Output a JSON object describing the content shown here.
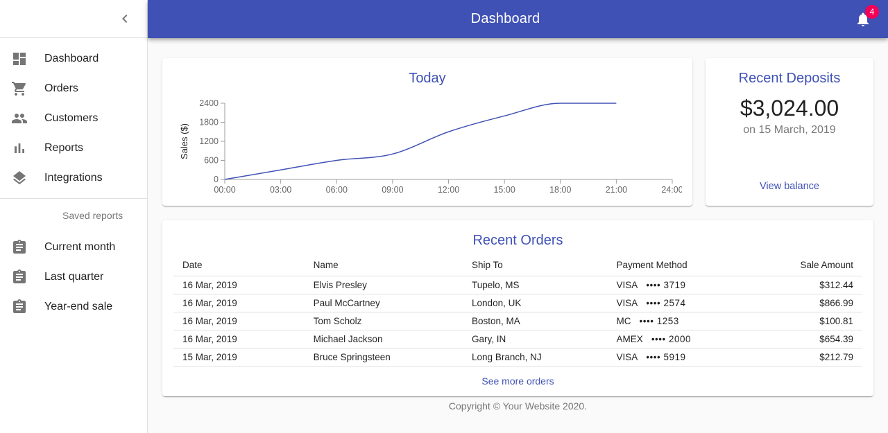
{
  "appbar": {
    "title": "Dashboard",
    "notifications_count": "4"
  },
  "sidebar": {
    "items": [
      {
        "label": "Dashboard",
        "icon": "dashboard-icon"
      },
      {
        "label": "Orders",
        "icon": "shopping-cart-icon"
      },
      {
        "label": "Customers",
        "icon": "people-icon"
      },
      {
        "label": "Reports",
        "icon": "bar-chart-icon"
      },
      {
        "label": "Integrations",
        "icon": "layers-icon"
      }
    ],
    "subheader": "Saved reports",
    "saved_reports": [
      {
        "label": "Current month",
        "icon": "assignment-icon"
      },
      {
        "label": "Last quarter",
        "icon": "assignment-icon"
      },
      {
        "label": "Year-end sale",
        "icon": "assignment-icon"
      }
    ]
  },
  "chart_data": {
    "type": "line",
    "title": "Today",
    "x": [
      "00:00",
      "03:00",
      "06:00",
      "09:00",
      "12:00",
      "15:00",
      "18:00",
      "21:00",
      "24:00"
    ],
    "values": [
      0,
      300,
      600,
      800,
      1500,
      2000,
      2400,
      2400,
      null
    ],
    "xlabel": "",
    "ylabel": "Sales ($)",
    "ylim": [
      0,
      2400
    ],
    "yticks": [
      0,
      600,
      1200,
      1800,
      2400
    ],
    "line_color": "#3f51b5",
    "grid": false,
    "legend": "none"
  },
  "deposits": {
    "title": "Recent Deposits",
    "amount": "$3,024.00",
    "date": "on 15 March, 2019",
    "link": "View balance"
  },
  "orders": {
    "title": "Recent Orders",
    "columns": [
      "Date",
      "Name",
      "Ship To",
      "Payment Method",
      "Sale Amount"
    ],
    "rows": [
      {
        "date": "16 Mar, 2019",
        "name": "Elvis Presley",
        "ship_to": "Tupelo, MS",
        "pay_brand": "VISA",
        "pay_last4": "•••• 3719",
        "amount": "$312.44"
      },
      {
        "date": "16 Mar, 2019",
        "name": "Paul McCartney",
        "ship_to": "London, UK",
        "pay_brand": "VISA",
        "pay_last4": "•••• 2574",
        "amount": "$866.99"
      },
      {
        "date": "16 Mar, 2019",
        "name": "Tom Scholz",
        "ship_to": "Boston, MA",
        "pay_brand": "MC",
        "pay_last4": "•••• 1253",
        "amount": "$100.81"
      },
      {
        "date": "16 Mar, 2019",
        "name": "Michael Jackson",
        "ship_to": "Gary, IN",
        "pay_brand": "AMEX",
        "pay_last4": "•••• 2000",
        "amount": "$654.39"
      },
      {
        "date": "15 Mar, 2019",
        "name": "Bruce Springsteen",
        "ship_to": "Long Branch, NJ",
        "pay_brand": "VISA",
        "pay_last4": "•••• 5919",
        "amount": "$212.79"
      }
    ],
    "link": "See more orders"
  },
  "footer": {
    "copyright": "Copyright © Your Website 2020."
  },
  "colors": {
    "primary": "#3f51b5",
    "badge": "#f50057",
    "icon_gray": "#757575"
  }
}
